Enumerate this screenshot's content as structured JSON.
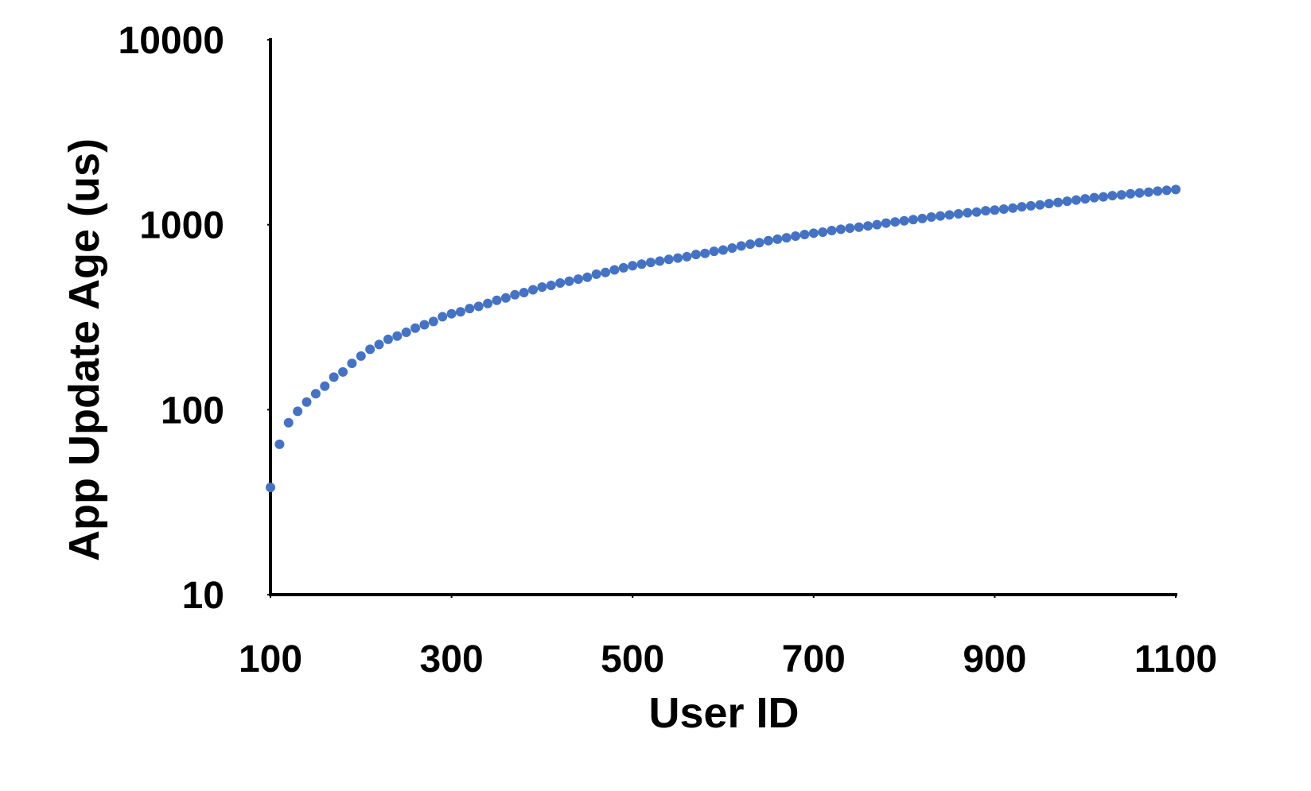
{
  "chart_data": {
    "type": "scatter",
    "x_label": "User ID",
    "y_label": "App Update Age (us)",
    "xlim": [
      100,
      1100
    ],
    "xticks": [
      100,
      300,
      500,
      700,
      900,
      1100
    ],
    "ylim": [
      10,
      10000
    ],
    "yticks": [
      10,
      100,
      1000,
      10000
    ],
    "y_log": true,
    "grid": false,
    "series": [
      {
        "color": "#4472c4",
        "x": [
          100,
          110,
          120,
          130,
          140,
          150,
          160,
          170,
          180,
          190,
          200,
          210,
          220,
          230,
          240,
          250,
          260,
          270,
          280,
          290,
          300,
          310,
          320,
          330,
          340,
          350,
          360,
          370,
          380,
          390,
          400,
          410,
          420,
          430,
          440,
          450,
          460,
          470,
          480,
          490,
          500,
          510,
          520,
          530,
          540,
          550,
          560,
          570,
          580,
          590,
          600,
          610,
          620,
          630,
          640,
          650,
          660,
          670,
          680,
          690,
          700,
          710,
          720,
          730,
          740,
          750,
          760,
          770,
          780,
          790,
          800,
          810,
          820,
          830,
          840,
          850,
          860,
          870,
          880,
          890,
          900,
          910,
          920,
          930,
          940,
          950,
          960,
          970,
          980,
          990,
          1000,
          1010,
          1020,
          1030,
          1040,
          1050,
          1060,
          1070,
          1080,
          1090,
          1100
        ],
        "values": [
          38,
          65,
          85,
          98,
          110,
          122,
          134,
          150,
          160,
          178,
          195,
          212,
          225,
          240,
          250,
          262,
          276,
          288,
          300,
          318,
          330,
          338,
          352,
          362,
          375,
          390,
          402,
          418,
          430,
          445,
          460,
          470,
          484,
          495,
          508,
          520,
          540,
          552,
          570,
          585,
          600,
          612,
          625,
          636,
          650,
          660,
          672,
          690,
          700,
          718,
          730,
          748,
          768,
          785,
          800,
          820,
          835,
          850,
          868,
          885,
          900,
          912,
          930,
          945,
          958,
          970,
          985,
          1000,
          1020,
          1035,
          1050,
          1065,
          1080,
          1100,
          1115,
          1130,
          1145,
          1160,
          1170,
          1190,
          1200,
          1215,
          1230,
          1250,
          1265,
          1280,
          1300,
          1320,
          1340,
          1360,
          1380,
          1400,
          1415,
          1435,
          1450,
          1470,
          1485,
          1500,
          1520,
          1535,
          1550
        ]
      }
    ]
  }
}
